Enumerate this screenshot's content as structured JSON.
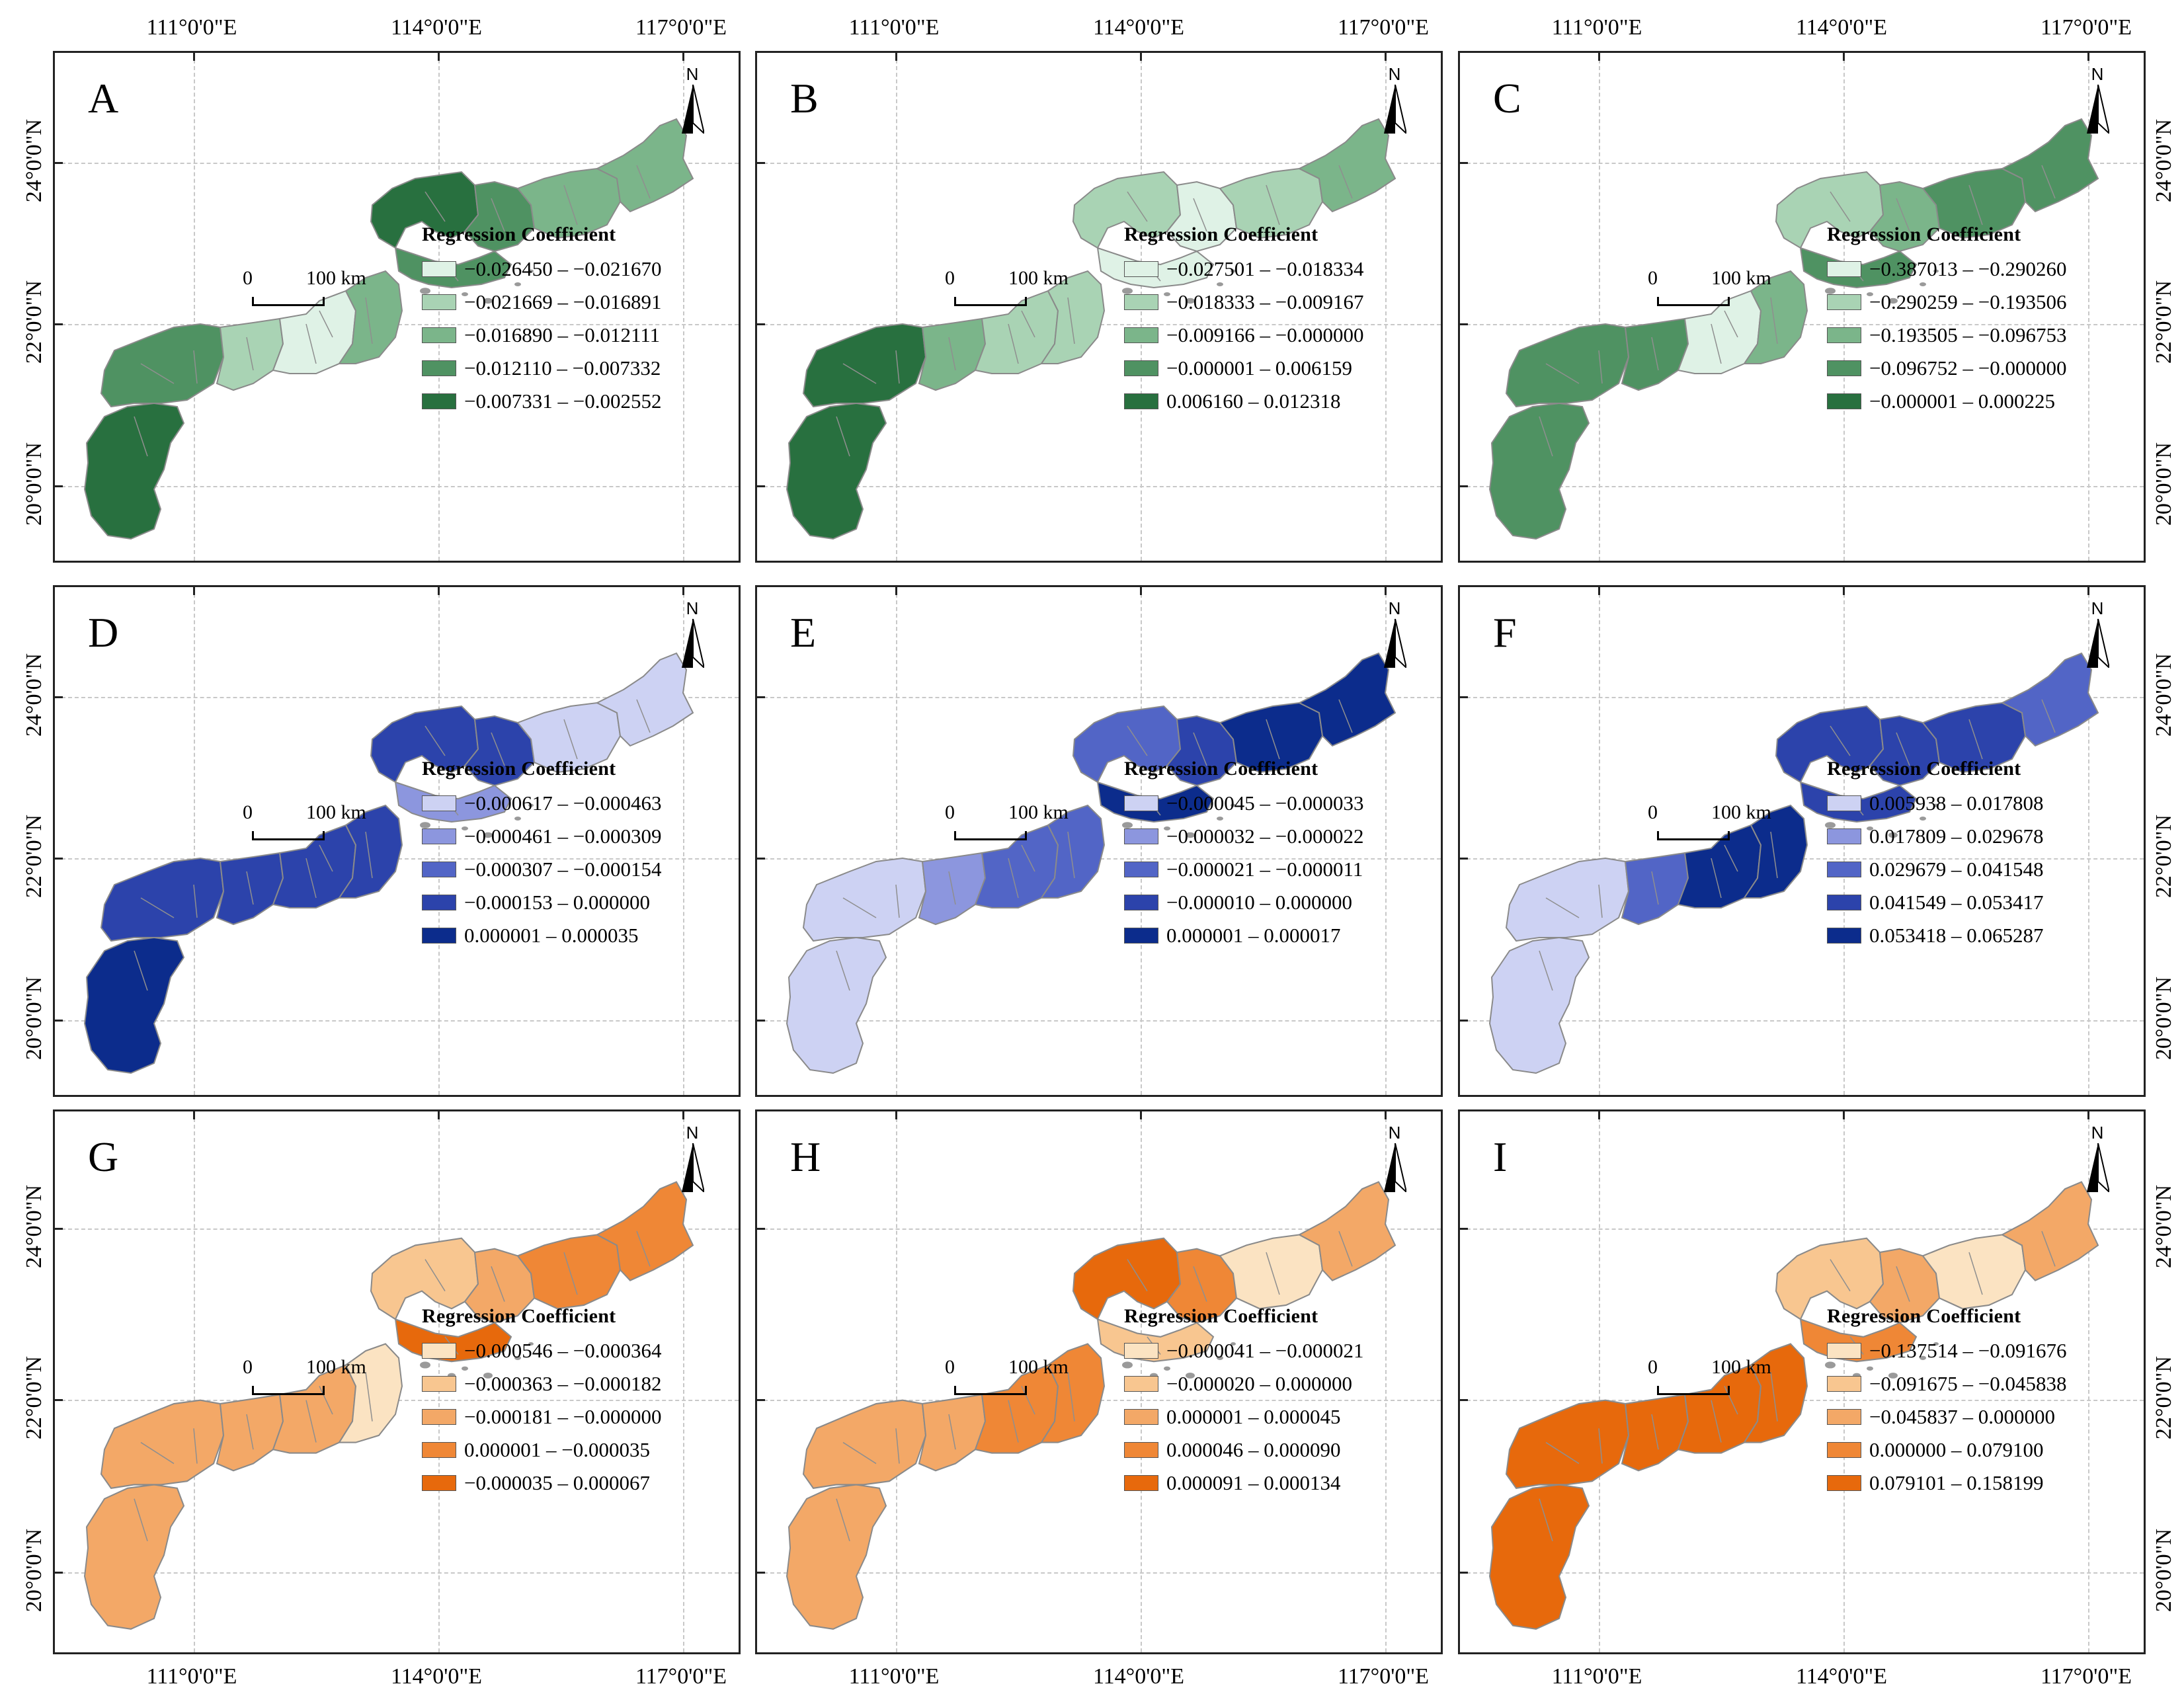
{
  "axes": {
    "lon_ticks": [
      "111°0'0\"E",
      "114°0'0\"E",
      "117°0'0\"E"
    ],
    "lat_ticks": [
      "24°0'0\"N",
      "22°0'0\"N",
      "20°0'0\"N"
    ]
  },
  "scale_bar": {
    "zero": "0",
    "label": "100 km"
  },
  "north_label": "N",
  "legend_title": "Regression Coefficient",
  "panels": [
    {
      "letter": "A",
      "palette": "green",
      "classes": [
        "−0.026450 – −0.021670",
        "−0.021669 – −0.016891",
        "−0.016890 – −0.012111",
        "−0.012110 – −0.007332",
        "−0.007331 – −0.002552"
      ],
      "region_classes": [
        4,
        3,
        1,
        0,
        2,
        4,
        3,
        3,
        2,
        2
      ]
    },
    {
      "letter": "B",
      "palette": "green",
      "classes": [
        "−0.027501 – −0.018334",
        "−0.018333 – −0.009167",
        "−0.009166 – −0.000000",
        "−0.000001 – 0.006159",
        "0.006160 – 0.012318"
      ],
      "region_classes": [
        4,
        4,
        2,
        1,
        1,
        1,
        0,
        0,
        1,
        2
      ]
    },
    {
      "letter": "C",
      "palette": "green",
      "classes": [
        "−0.387013 – −0.290260",
        "−0.290259 – −0.193506",
        "−0.193505 – −0.096753",
        "−0.096752 – −0.000000",
        "−0.000001 – 0.000225"
      ],
      "region_classes": [
        3,
        3,
        3,
        0,
        2,
        1,
        2,
        3,
        3,
        3
      ]
    },
    {
      "letter": "D",
      "palette": "blue",
      "classes": [
        "−0.000617 – −0.000463",
        "−0.000461 – −0.000309",
        "−0.000307 – −0.000154",
        "−0.000153 – 0.000000",
        "0.000001 – 0.000035"
      ],
      "region_classes": [
        4,
        3,
        3,
        3,
        3,
        3,
        3,
        1,
        0,
        0
      ]
    },
    {
      "letter": "E",
      "palette": "blue",
      "classes": [
        "−0.000045 – −0.000033",
        "−0.000032 – −0.000022",
        "−0.000021 – −0.000011",
        "−0.000010 – 0.000000",
        "0.000001 – 0.000017"
      ],
      "region_classes": [
        0,
        0,
        1,
        2,
        2,
        2,
        3,
        4,
        4,
        4
      ]
    },
    {
      "letter": "F",
      "palette": "blue",
      "classes": [
        "0.005938 – 0.017808",
        "0.017809 – 0.029678",
        "0.029679 – 0.041548",
        "0.041549 – 0.053417",
        "0.053418 – 0.065287"
      ],
      "region_classes": [
        0,
        0,
        2,
        4,
        4,
        3,
        3,
        3,
        3,
        2
      ]
    },
    {
      "letter": "G",
      "palette": "orange",
      "classes": [
        "−0.000546 – −0.000364",
        "−0.000363 – −0.000182",
        "−0.000181 – −0.000000",
        "0.000001 – −0.000035",
        "−0.000035 – 0.000067"
      ],
      "region_classes": [
        2,
        2,
        2,
        2,
        0,
        1,
        2,
        4,
        3,
        3
      ]
    },
    {
      "letter": "H",
      "palette": "orange",
      "classes": [
        "−0.000041 – −0.000021",
        "−0.000020 – 0.000000",
        "0.000001 – 0.000045",
        "0.000046 – 0.000090",
        "0.000091 – 0.000134"
      ],
      "region_classes": [
        2,
        2,
        2,
        3,
        3,
        4,
        3,
        1,
        0,
        2
      ]
    },
    {
      "letter": "I",
      "palette": "orange",
      "classes": [
        "−0.137514 – −0.091676",
        "−0.091675 – −0.045838",
        "−0.045837 – 0.000000",
        "0.000000 – 0.079100",
        "0.079101 – 0.158199"
      ],
      "region_classes": [
        4,
        4,
        4,
        4,
        4,
        1,
        2,
        3,
        0,
        2
      ]
    }
  ],
  "palettes": {
    "green": [
      "#dff2e6",
      "#a9d3b4",
      "#7bb58a",
      "#4f9262",
      "#28703f"
    ],
    "blue": [
      "#cdd2f3",
      "#8c96de",
      "#5265c6",
      "#2c43ab",
      "#0c2c8c"
    ],
    "orange": [
      "#fbe3c2",
      "#f8c690",
      "#f3a867",
      "#ef8736",
      "#e7690c"
    ]
  }
}
